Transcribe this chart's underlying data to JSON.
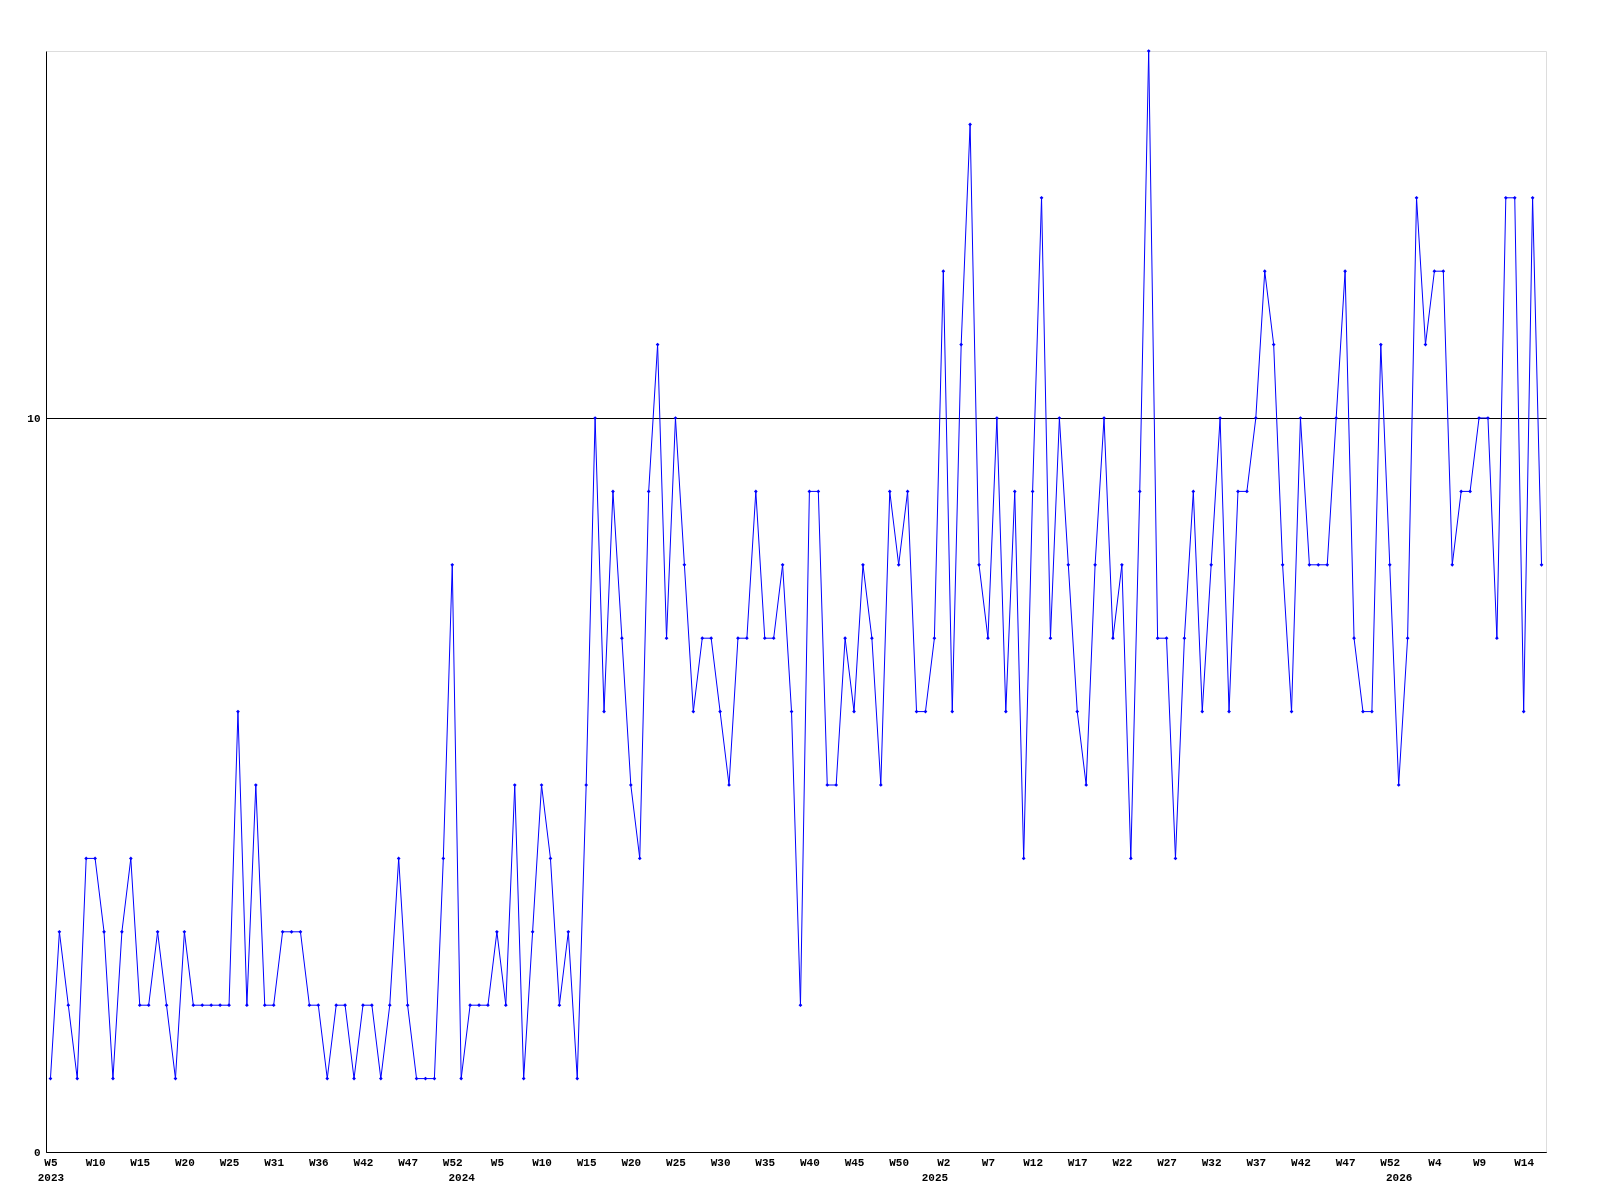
{
  "chart_data": {
    "type": "line",
    "color": "#0000ff",
    "marker": "diamond",
    "line_style": "solid",
    "grid": "y",
    "ylim": [
      0,
      15
    ],
    "yticks": [
      0,
      10
    ],
    "categories": [
      "W5\n2023",
      null,
      null,
      null,
      null,
      "W10",
      null,
      null,
      null,
      null,
      "W15",
      null,
      null,
      null,
      null,
      "W20",
      null,
      null,
      null,
      null,
      "W25",
      null,
      null,
      null,
      null,
      "W31",
      null,
      null,
      null,
      null,
      "W36",
      null,
      null,
      null,
      null,
      "W42",
      null,
      null,
      null,
      null,
      "W47",
      null,
      null,
      null,
      null,
      "W52",
      "\n2024",
      null,
      null,
      null,
      "W5",
      null,
      null,
      null,
      null,
      "W10",
      null,
      null,
      null,
      null,
      "W15",
      null,
      null,
      null,
      null,
      "W20",
      null,
      null,
      null,
      null,
      "W25",
      null,
      null,
      null,
      null,
      "W30",
      null,
      null,
      null,
      null,
      "W35",
      null,
      null,
      null,
      null,
      "W40",
      null,
      null,
      null,
      null,
      "W45",
      null,
      null,
      null,
      null,
      "W50",
      null,
      null,
      null,
      "\n2025",
      "W2",
      null,
      null,
      null,
      null,
      "W7",
      null,
      null,
      null,
      null,
      "W12",
      null,
      null,
      null,
      null,
      "W17",
      null,
      null,
      null,
      null,
      "W22",
      null,
      null,
      null,
      null,
      "W27",
      null,
      null,
      null,
      null,
      "W32",
      null,
      null,
      null,
      null,
      "W37",
      null,
      null,
      null,
      null,
      "W42",
      null,
      null,
      null,
      null,
      "W47",
      null,
      null,
      null,
      null,
      "W52",
      "\n2026",
      null,
      null,
      null,
      "W4",
      null,
      null,
      null,
      null,
      "W9",
      null,
      null,
      null,
      null,
      "W14",
      null,
      null
    ],
    "values": [
      1,
      3,
      2,
      1,
      4,
      4,
      3,
      1,
      3,
      4,
      2,
      2,
      3,
      2,
      1,
      3,
      2,
      2,
      2,
      2,
      2,
      6,
      2,
      5,
      2,
      2,
      3,
      3,
      3,
      2,
      2,
      1,
      2,
      2,
      1,
      2,
      2,
      1,
      2,
      4,
      2,
      1,
      1,
      1,
      4,
      8,
      1,
      2,
      2,
      2,
      3,
      2,
      5,
      1,
      3,
      5,
      4,
      2,
      3,
      1,
      5,
      10,
      6,
      9,
      7,
      5,
      4,
      9,
      11,
      7,
      10,
      8,
      6,
      7,
      7,
      6,
      5,
      7,
      7,
      9,
      7,
      7,
      8,
      6,
      2,
      9,
      9,
      5,
      5,
      7,
      6,
      8,
      7,
      5,
      9,
      8,
      9,
      6,
      6,
      7,
      12,
      6,
      11,
      14,
      8,
      7,
      10,
      6,
      9,
      4,
      9,
      13,
      7,
      10,
      8,
      6,
      5,
      8,
      10,
      7,
      8,
      4,
      9,
      15,
      7,
      7,
      4,
      7,
      9,
      6,
      8,
      10,
      6,
      9,
      9,
      10,
      12,
      11,
      8,
      6,
      10,
      8,
      8,
      8,
      10,
      12,
      7,
      6,
      6,
      11,
      8,
      5,
      7,
      13,
      11,
      12,
      12,
      8,
      9,
      9,
      10,
      10,
      7,
      13,
      13,
      6,
      13,
      8
    ]
  }
}
